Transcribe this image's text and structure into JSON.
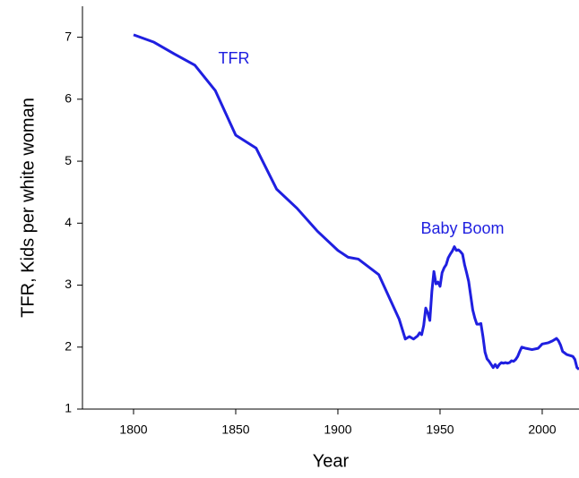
{
  "chart_data": {
    "type": "line",
    "xlabel": "Year",
    "ylabel": "TFR, Kids per white woman",
    "annotations": [
      "TFR",
      "Baby Boom"
    ],
    "xlim": [
      1775,
      2018
    ],
    "xticks": [
      1800,
      1850,
      1900,
      1950,
      2000
    ],
    "ylim": [
      1,
      7.5
    ],
    "yticks": [
      1,
      2,
      3,
      4,
      5,
      6,
      7
    ],
    "grid": false,
    "series": [
      {
        "name": "TFR",
        "color": "#1f1fe0",
        "x": [
          1800,
          1810,
          1820,
          1830,
          1840,
          1850,
          1860,
          1870,
          1880,
          1890,
          1900,
          1905,
          1910,
          1920,
          1930,
          1933,
          1935,
          1937,
          1939,
          1940,
          1941,
          1942,
          1943,
          1944,
          1945,
          1946,
          1947,
          1948,
          1949,
          1950,
          1951,
          1952,
          1953,
          1954,
          1955,
          1956,
          1957,
          1958,
          1959,
          1960,
          1961,
          1962,
          1963,
          1964,
          1965,
          1966,
          1967,
          1968,
          1969,
          1970,
          1971,
          1972,
          1973,
          1974,
          1975,
          1976,
          1977,
          1978,
          1979,
          1980,
          1981,
          1982,
          1983,
          1984,
          1985,
          1986,
          1987,
          1988,
          1989,
          1990,
          1992,
          1995,
          1998,
          2000,
          2003,
          2005,
          2007,
          2008,
          2009,
          2010,
          2012,
          2014,
          2015,
          2016,
          2017,
          2018
        ],
        "values": [
          7.04,
          6.92,
          6.73,
          6.55,
          6.14,
          5.42,
          5.21,
          4.55,
          4.24,
          3.87,
          3.56,
          3.45,
          3.42,
          3.17,
          2.45,
          2.13,
          2.17,
          2.13,
          2.18,
          2.23,
          2.2,
          2.35,
          2.63,
          2.55,
          2.43,
          2.9,
          3.22,
          3.02,
          3.05,
          2.98,
          3.2,
          3.28,
          3.33,
          3.44,
          3.5,
          3.55,
          3.62,
          3.56,
          3.57,
          3.54,
          3.5,
          3.33,
          3.2,
          3.06,
          2.83,
          2.6,
          2.47,
          2.37,
          2.37,
          2.38,
          2.17,
          1.92,
          1.81,
          1.77,
          1.72,
          1.67,
          1.72,
          1.67,
          1.72,
          1.75,
          1.74,
          1.75,
          1.74,
          1.75,
          1.78,
          1.77,
          1.8,
          1.85,
          1.93,
          2.0,
          1.98,
          1.96,
          1.98,
          2.05,
          2.07,
          2.1,
          2.14,
          2.1,
          2.03,
          1.93,
          1.88,
          1.86,
          1.85,
          1.8,
          1.67,
          1.64
        ]
      }
    ]
  }
}
